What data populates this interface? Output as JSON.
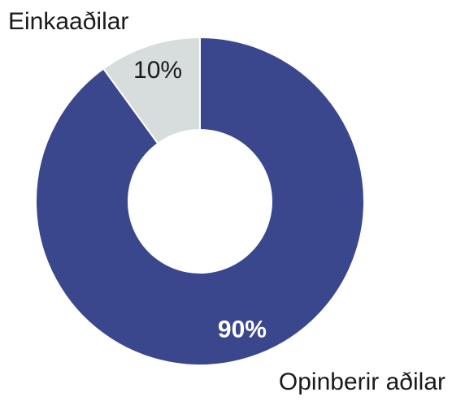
{
  "chart_data": {
    "type": "donut",
    "categories": [
      "Opinberir aðilar",
      "Einkaaðilar"
    ],
    "values": [
      90,
      10
    ],
    "value_labels": [
      "90%",
      "10%"
    ],
    "colors": [
      "#3a478c",
      "#d7dcdc"
    ]
  }
}
